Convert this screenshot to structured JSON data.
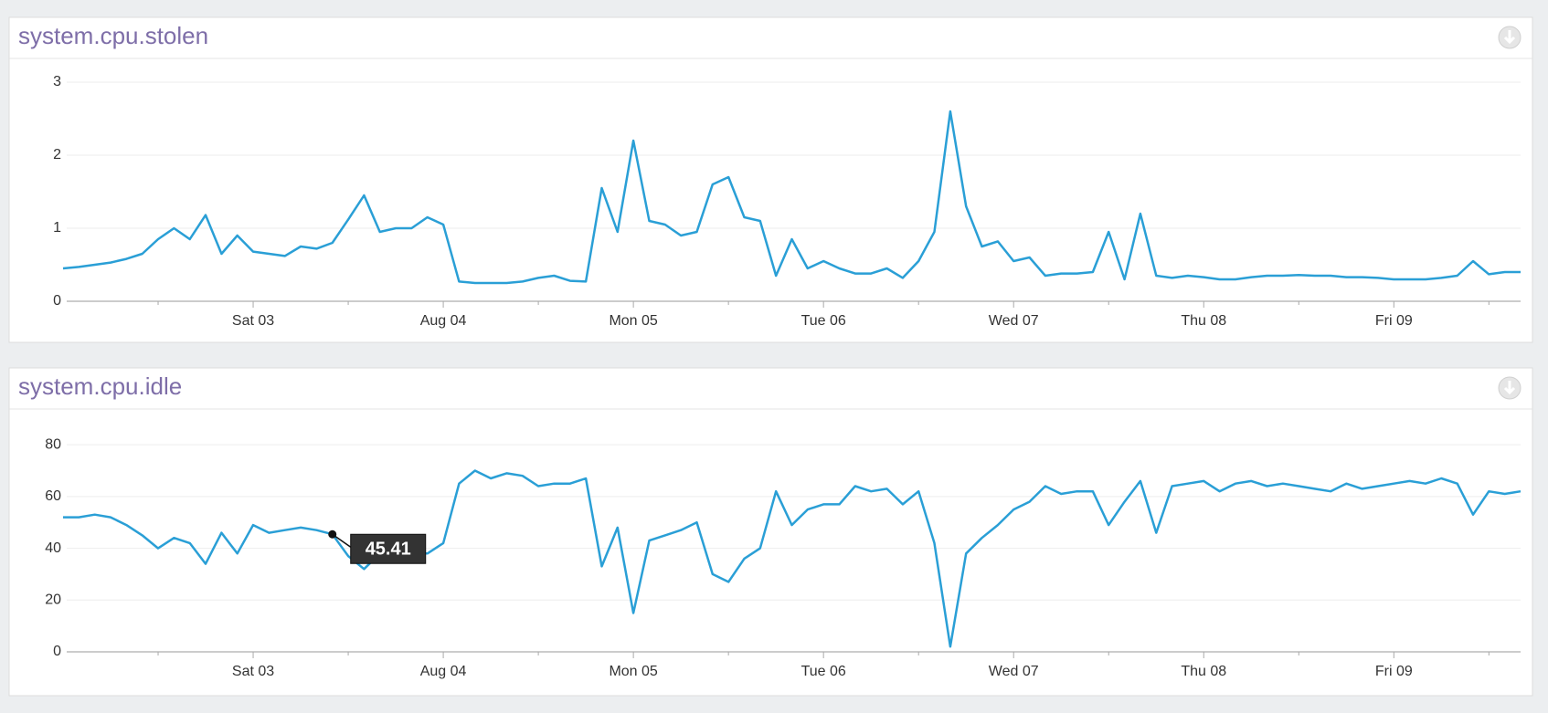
{
  "chart_data": [
    {
      "type": "line",
      "title": "system.cpu.stolen",
      "color": "#2a9fd6",
      "grid": true,
      "categories": [
        null,
        null,
        null,
        null,
        null,
        null,
        null,
        null,
        null,
        null,
        null,
        null,
        "Sat 03",
        null,
        null,
        null,
        null,
        null,
        null,
        null,
        null,
        null,
        null,
        null,
        "Aug 04",
        null,
        null,
        null,
        null,
        null,
        null,
        null,
        null,
        null,
        null,
        null,
        "Mon 05",
        null,
        null,
        null,
        null,
        null,
        null,
        null,
        null,
        null,
        null,
        null,
        "Tue 06",
        null,
        null,
        null,
        null,
        null,
        null,
        null,
        null,
        null,
        null,
        null,
        "Wed 07",
        null,
        null,
        null,
        null,
        null,
        null,
        null,
        null,
        null,
        null,
        null,
        "Thu 08",
        null,
        null,
        null,
        null,
        null,
        null,
        null,
        null,
        null,
        null,
        null,
        "Fri 09",
        null,
        null,
        null,
        null,
        null,
        null,
        null,
        null
      ],
      "values": [
        0.45,
        0.47,
        0.5,
        0.53,
        0.58,
        0.65,
        0.85,
        1.0,
        0.85,
        1.18,
        0.65,
        0.9,
        0.68,
        0.65,
        0.62,
        0.75,
        0.72,
        0.8,
        1.12,
        1.45,
        0.95,
        1.0,
        1.0,
        1.15,
        1.05,
        0.27,
        0.25,
        0.25,
        0.25,
        0.27,
        0.32,
        0.35,
        0.28,
        0.27,
        1.55,
        0.95,
        2.2,
        1.1,
        1.05,
        0.9,
        0.95,
        1.6,
        1.7,
        1.15,
        1.1,
        0.35,
        0.85,
        0.45,
        0.55,
        0.45,
        0.38,
        0.38,
        0.45,
        0.32,
        0.55,
        0.95,
        2.6,
        1.3,
        0.75,
        0.82,
        0.55,
        0.6,
        0.35,
        0.38,
        0.38,
        0.4,
        0.95,
        0.3,
        1.2,
        0.35,
        0.32,
        0.35,
        0.33,
        0.3,
        0.3,
        0.33,
        0.35,
        0.35,
        0.36,
        0.35,
        0.35,
        0.33,
        0.33,
        0.32,
        0.3,
        0.3,
        0.3,
        0.32,
        0.35,
        0.55,
        0.37,
        0.4,
        0.4
      ],
      "ylim": [
        0,
        3.2
      ],
      "yticks": [
        0,
        1,
        2,
        3
      ]
    },
    {
      "type": "line",
      "title": "system.cpu.idle",
      "color": "#2a9fd6",
      "grid": true,
      "tooltip": 45.41,
      "categories": [
        null,
        null,
        null,
        null,
        null,
        null,
        null,
        null,
        null,
        null,
        null,
        null,
        "Sat 03",
        null,
        null,
        null,
        null,
        null,
        null,
        null,
        null,
        null,
        null,
        null,
        "Aug 04",
        null,
        null,
        null,
        null,
        null,
        null,
        null,
        null,
        null,
        null,
        null,
        "Mon 05",
        null,
        null,
        null,
        null,
        null,
        null,
        null,
        null,
        null,
        null,
        null,
        "Tue 06",
        null,
        null,
        null,
        null,
        null,
        null,
        null,
        null,
        null,
        null,
        null,
        "Wed 07",
        null,
        null,
        null,
        null,
        null,
        null,
        null,
        null,
        null,
        null,
        null,
        "Thu 08",
        null,
        null,
        null,
        null,
        null,
        null,
        null,
        null,
        null,
        null,
        null,
        "Fri 09",
        null,
        null,
        null,
        null,
        null,
        null,
        null,
        null
      ],
      "values": [
        52,
        52,
        53,
        52,
        49,
        45,
        40,
        44,
        42,
        34,
        46,
        38,
        49,
        46,
        47,
        48,
        47,
        45.41,
        37,
        32,
        38,
        38,
        38,
        38,
        42,
        65,
        70,
        67,
        69,
        68,
        64,
        65,
        65,
        67,
        33,
        48,
        15,
        43,
        45,
        47,
        50,
        30,
        27,
        36,
        40,
        62,
        49,
        55,
        57,
        57,
        64,
        62,
        63,
        57,
        62,
        42,
        2,
        38,
        44,
        49,
        55,
        58,
        64,
        61,
        62,
        62,
        49,
        58,
        66,
        46,
        64,
        65,
        66,
        62,
        65,
        66,
        64,
        65,
        64,
        63,
        62,
        65,
        63,
        64,
        65,
        66,
        65,
        67,
        65,
        53,
        62,
        61,
        62
      ],
      "ylim": [
        0,
        85
      ],
      "yticks": [
        0,
        20,
        40,
        60,
        80
      ]
    }
  ]
}
